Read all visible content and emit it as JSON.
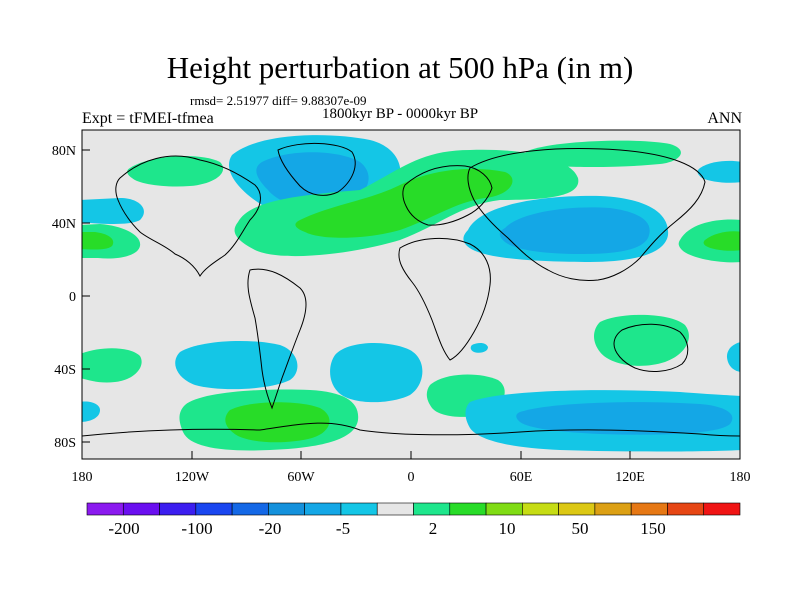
{
  "header": {
    "title": "Height perturbation at 500 hPa (in m)",
    "stats": "rmsd= 2.51977 diff= 9.88307e-09",
    "left_label": "Expt = tFMEI-tfmea",
    "center_label": "1800kyr BP - 0000kyr BP",
    "right_label": "ANN"
  },
  "axes": {
    "x_ticks": [
      "180",
      "120W",
      "60W",
      "0",
      "60E",
      "120E",
      "180"
    ],
    "y_ticks": [
      "80N",
      "40N",
      "0",
      "40S",
      "80S"
    ]
  },
  "colorbar": {
    "colors": [
      "#8b1aef",
      "#6a0ff0",
      "#3c1ef0",
      "#1a46f0",
      "#1468e6",
      "#1491dc",
      "#14a7e6",
      "#14c6e6",
      "#e6e6e6",
      "#1ee68c",
      "#28dc28",
      "#80dc14",
      "#c6dc14",
      "#dcc814",
      "#dca014",
      "#e67814",
      "#e64614",
      "#f01414"
    ],
    "labels": [
      "-200",
      "-100",
      "-20",
      "-5",
      "2",
      "10",
      "50",
      "150"
    ]
  },
  "map": {
    "background_color": "#e6e6e6",
    "contour_colors": {
      "light_blue": "#14c6e6",
      "mid_blue": "#14a7e6",
      "light_green": "#1ee68c",
      "green": "#28dc28"
    }
  }
}
